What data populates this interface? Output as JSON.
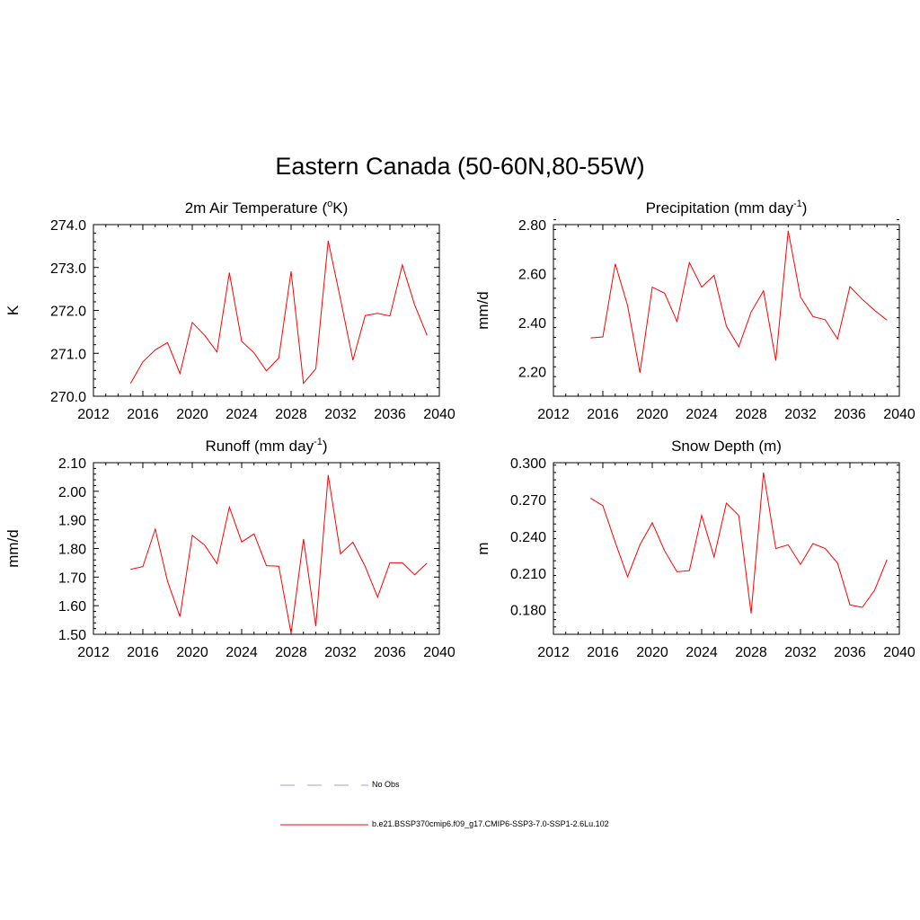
{
  "title": "Eastern Canada (50-60N,80-55W)",
  "legend": {
    "entries": [
      {
        "label": "No Obs",
        "color": "#b0b0e8",
        "style": "dashed"
      },
      {
        "label": "b.e21.BSSP370cmip6.f09_g17.CMIP6-SSP3-7.0-SSP1-2.6Lu.102",
        "color": "#ff0000",
        "style": "solid"
      }
    ]
  },
  "chart_data": [
    {
      "type": "line",
      "title_main": "2m Air Temperature (",
      "title_sup": "o",
      "title_end": "K)",
      "ylabel": "K",
      "xlim": [
        2012,
        2040
      ],
      "ylim": [
        270.0,
        274.0
      ],
      "xticks": [
        2012,
        2016,
        2020,
        2024,
        2028,
        2032,
        2036,
        2040
      ],
      "yticks": [
        270.0,
        271.0,
        272.0,
        273.0,
        274.0
      ],
      "ytick_decimals": 1,
      "series": [
        {
          "color": "#ff0000",
          "x": [
            2015,
            2016,
            2017,
            2018,
            2019,
            2020,
            2021,
            2022,
            2023,
            2024,
            2025,
            2026,
            2027,
            2028,
            2029,
            2030,
            2031,
            2032,
            2033,
            2034,
            2035,
            2036,
            2037,
            2038,
            2039
          ],
          "y": [
            270.3,
            270.8,
            271.08,
            271.25,
            270.53,
            271.72,
            271.42,
            271.03,
            272.88,
            271.28,
            271.01,
            270.59,
            270.89,
            272.91,
            270.3,
            270.64,
            273.62,
            272.26,
            270.84,
            271.88,
            271.93,
            271.87,
            273.06,
            272.13,
            271.42
          ]
        }
      ]
    },
    {
      "type": "line",
      "title_main": "Precipitation (mm day",
      "title_sup": "-1",
      "title_end": ")",
      "ylabel": "mm/d",
      "xlim": [
        2012,
        2040
      ],
      "ylim": [
        2.1,
        2.8
      ],
      "xticks": [
        2012,
        2016,
        2020,
        2024,
        2028,
        2032,
        2036,
        2040
      ],
      "yticks": [
        2.2,
        2.4,
        2.6,
        2.8
      ],
      "ytick_decimals": 2,
      "series": [
        {
          "color": "#ff0000",
          "x": [
            2015,
            2016,
            2017,
            2018,
            2019,
            2020,
            2021,
            2022,
            2023,
            2024,
            2025,
            2026,
            2027,
            2028,
            2029,
            2030,
            2031,
            2032,
            2033,
            2034,
            2035,
            2036,
            2037,
            2038,
            2039
          ],
          "y": [
            2.338,
            2.342,
            2.64,
            2.47,
            2.196,
            2.545,
            2.52,
            2.405,
            2.645,
            2.545,
            2.593,
            2.386,
            2.302,
            2.443,
            2.53,
            2.245,
            2.775,
            2.505,
            2.425,
            2.412,
            2.333,
            2.547,
            2.495,
            2.45,
            2.41
          ]
        }
      ]
    },
    {
      "type": "line",
      "title_main": "Runoff (mm day",
      "title_sup": "-1",
      "title_end": ")",
      "ylabel": "mm/d",
      "xlim": [
        2012,
        2040
      ],
      "ylim": [
        1.5,
        2.1
      ],
      "xticks": [
        2012,
        2016,
        2020,
        2024,
        2028,
        2032,
        2036,
        2040
      ],
      "yticks": [
        1.5,
        1.6,
        1.7,
        1.8,
        1.9,
        2.0,
        2.1
      ],
      "ytick_decimals": 2,
      "series": [
        {
          "color": "#ff0000",
          "x": [
            2015,
            2016,
            2017,
            2018,
            2019,
            2020,
            2021,
            2022,
            2023,
            2024,
            2025,
            2026,
            2027,
            2028,
            2029,
            2030,
            2031,
            2032,
            2033,
            2034,
            2035,
            2036,
            2037,
            2038,
            2039
          ],
          "y": [
            1.727,
            1.737,
            1.868,
            1.685,
            1.562,
            1.846,
            1.812,
            1.747,
            1.945,
            1.823,
            1.851,
            1.74,
            1.738,
            1.503,
            1.833,
            1.528,
            2.057,
            1.781,
            1.822,
            1.737,
            1.63,
            1.75,
            1.75,
            1.708,
            1.749
          ]
        }
      ]
    },
    {
      "type": "line",
      "title_main": "Snow Depth (m)",
      "title_sup": "",
      "title_end": "",
      "ylabel": "m",
      "xlim": [
        2012,
        2040
      ],
      "ylim": [
        0.16,
        0.3
      ],
      "xticks": [
        2012,
        2016,
        2020,
        2024,
        2028,
        2032,
        2036,
        2040
      ],
      "yticks": [
        0.18,
        0.21,
        0.24,
        0.27,
        0.3
      ],
      "ytick_decimals": 3,
      "series": [
        {
          "color": "#ff0000",
          "x": [
            2015,
            2016,
            2017,
            2018,
            2019,
            2020,
            2021,
            2022,
            2023,
            2024,
            2025,
            2026,
            2027,
            2028,
            2029,
            2030,
            2031,
            2032,
            2033,
            2034,
            2035,
            2036,
            2037,
            2038,
            2039
          ],
          "y": [
            0.271,
            0.265,
            0.235,
            0.207,
            0.233,
            0.251,
            0.228,
            0.211,
            0.212,
            0.257,
            0.223,
            0.267,
            0.257,
            0.177,
            0.292,
            0.23,
            0.233,
            0.217,
            0.234,
            0.23,
            0.218,
            0.184,
            0.182,
            0.196,
            0.221
          ]
        }
      ]
    }
  ]
}
